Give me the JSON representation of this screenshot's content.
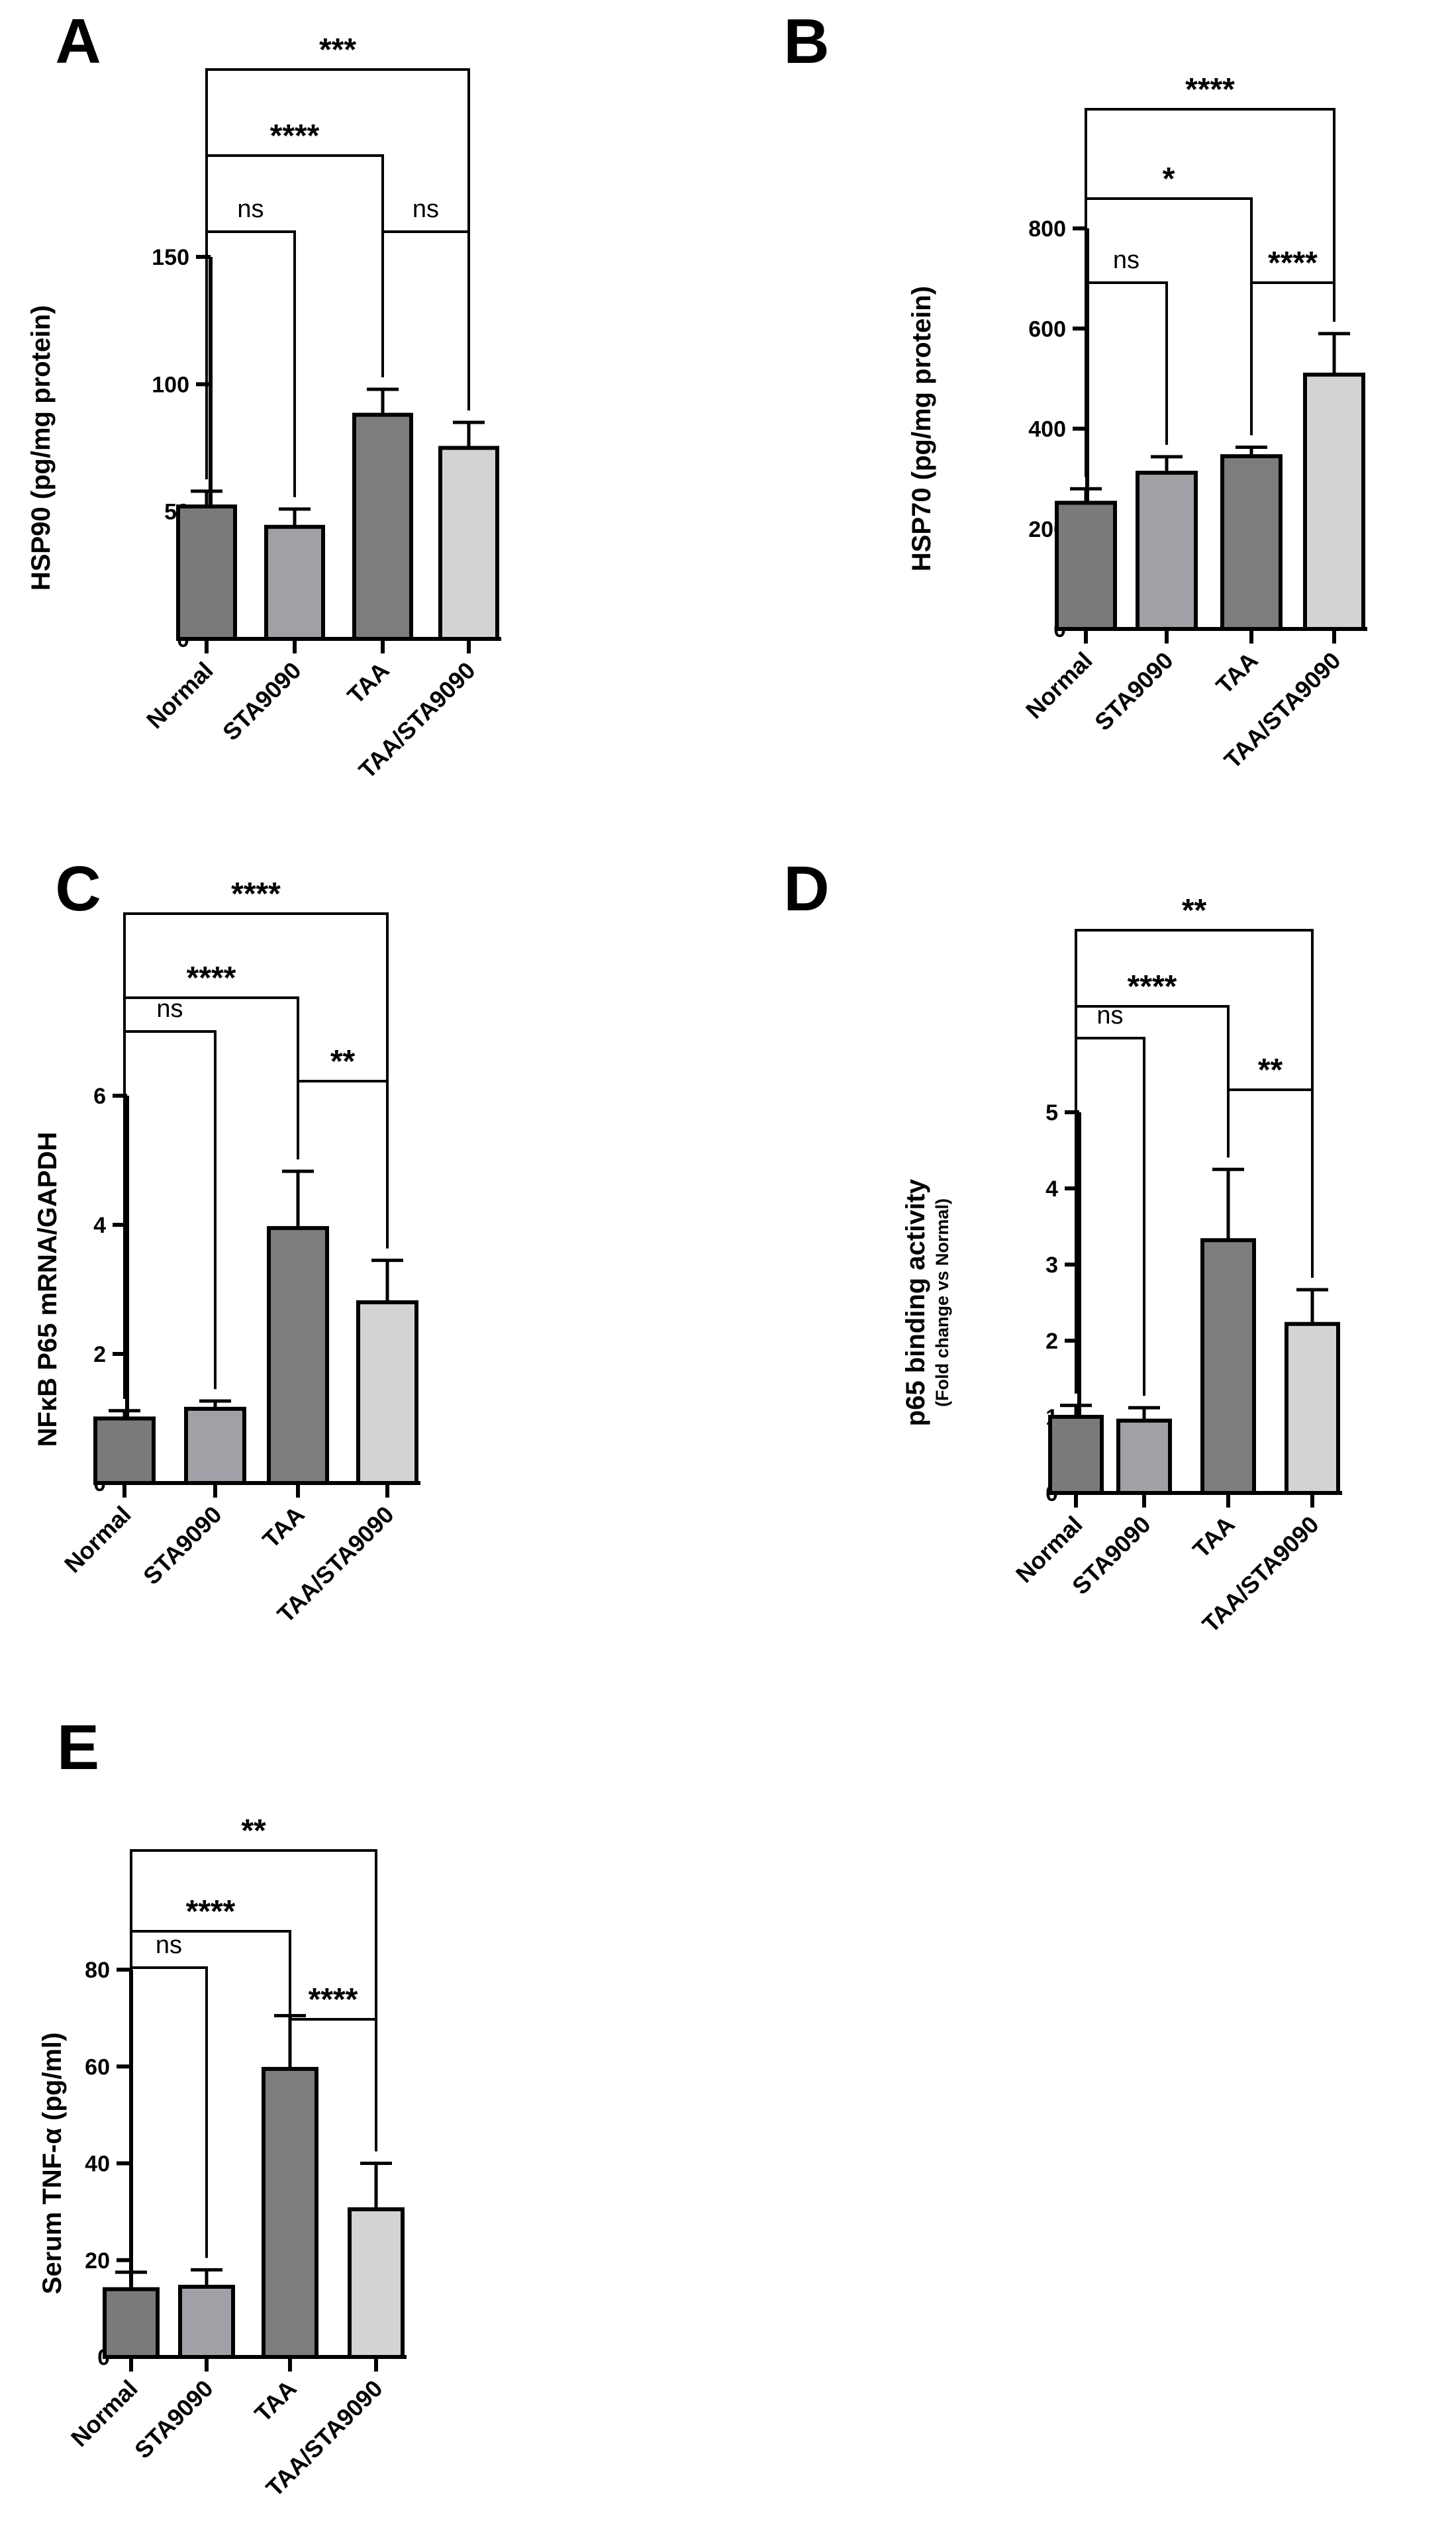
{
  "chart_data": [
    {
      "panel": "A",
      "type": "bar",
      "categories": [
        "Normal",
        "STA9090",
        "TAA",
        "TAA/STA9090"
      ],
      "values": [
        52,
        44,
        88,
        75
      ],
      "errors": [
        6,
        7,
        10,
        10
      ],
      "colors": [
        "#7a7a7a",
        "#a0a0a6",
        "#7d7d7d",
        "#d3d3d3"
      ],
      "ylabel": "HSP90 (pg/mg protein)",
      "ylabel_sub": "",
      "ylim": [
        0,
        150
      ],
      "yticks": [
        0,
        50,
        100,
        150
      ],
      "comparisons": [
        {
          "from": 0,
          "to": 1,
          "label": "ns"
        },
        {
          "from": 2,
          "to": 3,
          "label": "ns"
        },
        {
          "from": 0,
          "to": 2,
          "label": "****"
        },
        {
          "from": 0,
          "to": 3,
          "label": "***"
        }
      ]
    },
    {
      "panel": "B",
      "type": "bar",
      "categories": [
        "Normal",
        "STA9090",
        "TAA",
        "TAA/STA9090"
      ],
      "values": [
        252,
        312,
        345,
        508
      ],
      "errors": [
        28,
        32,
        18,
        82
      ],
      "colors": [
        "#7a7a7a",
        "#a0a0a6",
        "#7d7d7d",
        "#d3d3d3"
      ],
      "ylabel": "HSP70 (pg/mg protein)",
      "ylabel_sub": "",
      "ylim": [
        0,
        800
      ],
      "yticks": [
        0,
        200,
        400,
        600,
        800
      ],
      "comparisons": [
        {
          "from": 0,
          "to": 1,
          "label": "ns"
        },
        {
          "from": 2,
          "to": 3,
          "label": "****"
        },
        {
          "from": 0,
          "to": 2,
          "label": "*"
        },
        {
          "from": 0,
          "to": 3,
          "label": "****"
        }
      ]
    },
    {
      "panel": "C",
      "type": "bar",
      "categories": [
        "Normal",
        "STA9090",
        "TAA",
        "TAA/STA9090"
      ],
      "values": [
        1.0,
        1.15,
        3.95,
        2.8
      ],
      "errors": [
        0.12,
        0.12,
        0.88,
        0.65
      ],
      "colors": [
        "#7a7a7a",
        "#a0a0a6",
        "#7d7d7d",
        "#d3d3d3"
      ],
      "ylabel": "NFκB P65 mRNA/GAPDH",
      "ylabel_sub": "",
      "ylim": [
        0,
        6
      ],
      "yticks": [
        0,
        2,
        4,
        6
      ],
      "comparisons": [
        {
          "from": 0,
          "to": 1,
          "label": "ns"
        },
        {
          "from": 2,
          "to": 3,
          "label": "**"
        },
        {
          "from": 0,
          "to": 2,
          "label": "****"
        },
        {
          "from": 0,
          "to": 3,
          "label": "****"
        }
      ]
    },
    {
      "panel": "D",
      "type": "bar",
      "categories": [
        "Normal",
        "STA9090",
        "TAA",
        "TAA/STA9090"
      ],
      "values": [
        1.0,
        0.95,
        3.32,
        2.22
      ],
      "errors": [
        0.15,
        0.17,
        0.93,
        0.45
      ],
      "colors": [
        "#7a7a7a",
        "#a0a0a6",
        "#7d7d7d",
        "#d3d3d3"
      ],
      "ylabel": "p65 binding activity",
      "ylabel_sub": "(Fold change vs Normal)",
      "ylim": [
        0,
        5
      ],
      "yticks": [
        0,
        1,
        2,
        3,
        4,
        5
      ],
      "comparisons": [
        {
          "from": 0,
          "to": 1,
          "label": "ns"
        },
        {
          "from": 2,
          "to": 3,
          "label": "**"
        },
        {
          "from": 0,
          "to": 2,
          "label": "****"
        },
        {
          "from": 0,
          "to": 3,
          "label": "**"
        }
      ]
    },
    {
      "panel": "E",
      "type": "bar",
      "categories": [
        "Normal",
        "STA9090",
        "TAA",
        "TAA/STA9090"
      ],
      "values": [
        14,
        14.5,
        59.5,
        30.5
      ],
      "errors": [
        3.5,
        3.5,
        11,
        9.5
      ],
      "colors": [
        "#7a7a7a",
        "#a0a0a6",
        "#7d7d7d",
        "#d3d3d3"
      ],
      "ylabel": "Serum TNF-α (pg/ml)",
      "ylabel_sub": "",
      "ylim": [
        0,
        80
      ],
      "yticks": [
        0,
        20,
        40,
        60,
        80
      ],
      "comparisons": [
        {
          "from": 0,
          "to": 1,
          "label": "ns"
        },
        {
          "from": 2,
          "to": 3,
          "label": "****"
        },
        {
          "from": 0,
          "to": 2,
          "label": "****"
        },
        {
          "from": 0,
          "to": 3,
          "label": "**"
        }
      ]
    }
  ]
}
